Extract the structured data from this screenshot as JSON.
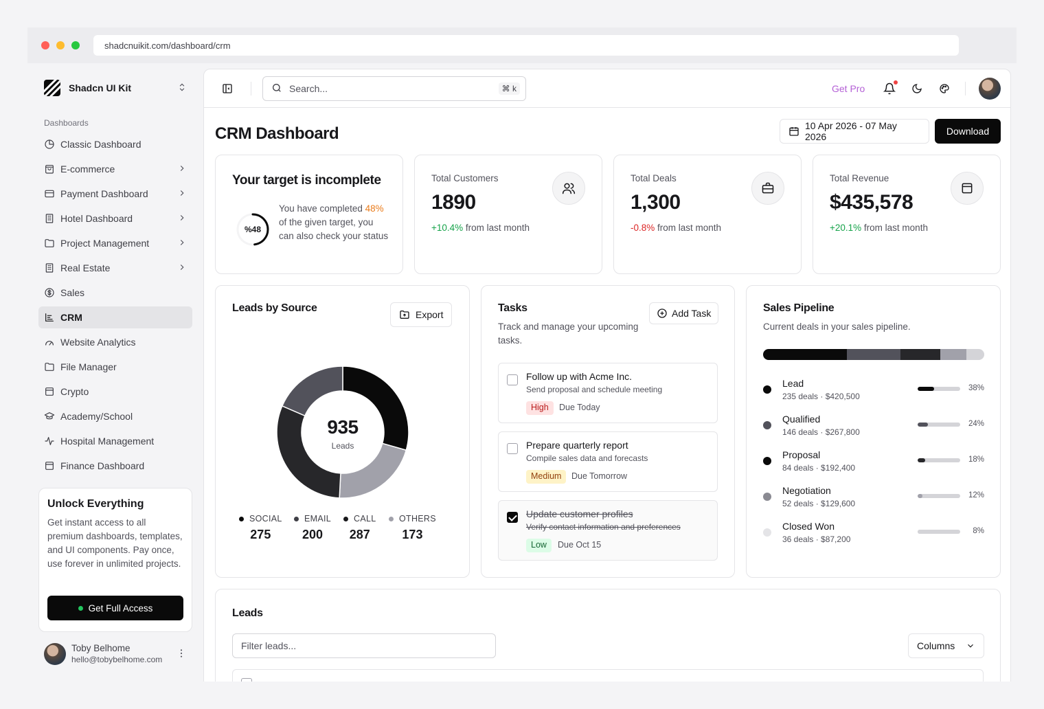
{
  "browser": {
    "url": "shadcnuikit.com/dashboard/crm"
  },
  "sidebar": {
    "brand": "Shadcn UI Kit",
    "section_label": "Dashboards",
    "items": [
      {
        "label": "Classic Dashboard",
        "icon": "pie-chart-icon",
        "chevron": false,
        "active": false
      },
      {
        "label": "E-commerce",
        "icon": "shopping-bag-icon",
        "chevron": true,
        "active": false
      },
      {
        "label": "Payment Dashboard",
        "icon": "credit-card-icon",
        "chevron": true,
        "active": false
      },
      {
        "label": "Hotel Dashboard",
        "icon": "building-icon",
        "chevron": true,
        "active": false
      },
      {
        "label": "Project Management",
        "icon": "folder-icon",
        "chevron": true,
        "active": false
      },
      {
        "label": "Real Estate",
        "icon": "building-icon",
        "chevron": true,
        "active": false
      },
      {
        "label": "Sales",
        "icon": "dollar-circle-icon",
        "chevron": false,
        "active": false
      },
      {
        "label": "CRM",
        "icon": "chart-bar-icon",
        "chevron": false,
        "active": true
      },
      {
        "label": "Website Analytics",
        "icon": "gauge-icon",
        "chevron": false,
        "active": false
      },
      {
        "label": "File Manager",
        "icon": "folder-icon",
        "chevron": false,
        "active": false
      },
      {
        "label": "Crypto",
        "icon": "wallet-icon",
        "chevron": false,
        "active": false
      },
      {
        "label": "Academy/School",
        "icon": "graduation-cap-icon",
        "chevron": false,
        "active": false
      },
      {
        "label": "Hospital Management",
        "icon": "activity-icon",
        "chevron": false,
        "active": false
      },
      {
        "label": "Finance Dashboard",
        "icon": "wallet-icon",
        "chevron": false,
        "active": false
      }
    ],
    "promo": {
      "title": "Unlock Everything",
      "text": "Get instant access to all premium dashboards, templates, and UI components. Pay once, use forever in unlimited projects.",
      "button": "Get Full Access"
    },
    "user": {
      "name": "Toby Belhome",
      "email": "hello@tobybelhome.com"
    }
  },
  "topbar": {
    "search_placeholder": "Search...",
    "shortcut": "⌘ k",
    "get_pro": "Get Pro"
  },
  "header": {
    "title": "CRM Dashboard",
    "date_range": "10 Apr 2026 - 07 May 2026",
    "download": "Download"
  },
  "target": {
    "title": "Your target is incomplete",
    "percent_label": "%48",
    "progress": 0.48,
    "text_before": "You have completed ",
    "percent": "48%",
    "text_after": " of the given target, you can also check your status"
  },
  "stats": [
    {
      "label": "Total Customers",
      "value": "1890",
      "delta": "+10.4%",
      "delta_suffix": " from last month",
      "trend": "up",
      "icon": "users-icon"
    },
    {
      "label": "Total Deals",
      "value": "1,300",
      "delta": "-0.8%",
      "delta_suffix": " from last month",
      "trend": "down",
      "icon": "briefcase-icon"
    },
    {
      "label": "Total Revenue",
      "value": "$435,578",
      "delta": "+20.1%",
      "delta_suffix": " from last month",
      "trend": "up",
      "icon": "wallet-icon"
    }
  ],
  "leads_source": {
    "title": "Leads by Source",
    "export": "Export",
    "total": "935",
    "total_label": "Leads"
  },
  "chart_data": {
    "type": "pie",
    "categories": [
      "SOCIAL",
      "EMAIL",
      "CALL",
      "OTHERS"
    ],
    "values": [
      275,
      200,
      287,
      173
    ],
    "colors": [
      "#0a0a0a",
      "#a1a1aa",
      "#27272a",
      "#52525b"
    ],
    "legend_colors": [
      "#0a0a0a",
      "#3f3f46",
      "#18181b",
      "#a1a1aa"
    ],
    "legend_position": "bottom"
  },
  "tasks": {
    "title": "Tasks",
    "subtitle": "Track and manage your upcoming tasks.",
    "add": "Add Task",
    "items": [
      {
        "title": "Follow up with Acme Inc.",
        "desc": "Send proposal and schedule meeting",
        "priority": "High",
        "level": "high",
        "due": "Due Today",
        "done": false
      },
      {
        "title": "Prepare quarterly report",
        "desc": "Compile sales data and forecasts",
        "priority": "Medium",
        "level": "medium",
        "due": "Due Tomorrow",
        "done": false
      },
      {
        "title": "Update customer profiles",
        "desc": "Verify contact information and preferences",
        "priority": "Low",
        "level": "low",
        "due": "Due Oct 15",
        "done": true
      }
    ]
  },
  "pipeline": {
    "title": "Sales Pipeline",
    "subtitle": "Current deals in your sales pipeline.",
    "stages": [
      {
        "name": "Lead",
        "meta": "235 deals · $420,500",
        "pct": "38%",
        "value": 38,
        "color": "#0a0a0a"
      },
      {
        "name": "Qualified",
        "meta": "146 deals · $267,800",
        "pct": "24%",
        "value": 24,
        "color": "#52525b"
      },
      {
        "name": "Proposal",
        "meta": "84 deals · $192,400",
        "pct": "18%",
        "value": 18,
        "color": "#27272a"
      },
      {
        "name": "Negotiation",
        "meta": "52 deals · $129,600",
        "pct": "12%",
        "value": 12,
        "color": "#a1a1aa"
      },
      {
        "name": "Closed Won",
        "meta": "36 deals · $87,200",
        "pct": "8%",
        "value": 8,
        "color": "#d4d4d8"
      }
    ]
  },
  "leads": {
    "title": "Leads",
    "filter_placeholder": "Filter leads...",
    "columns": "Columns"
  }
}
